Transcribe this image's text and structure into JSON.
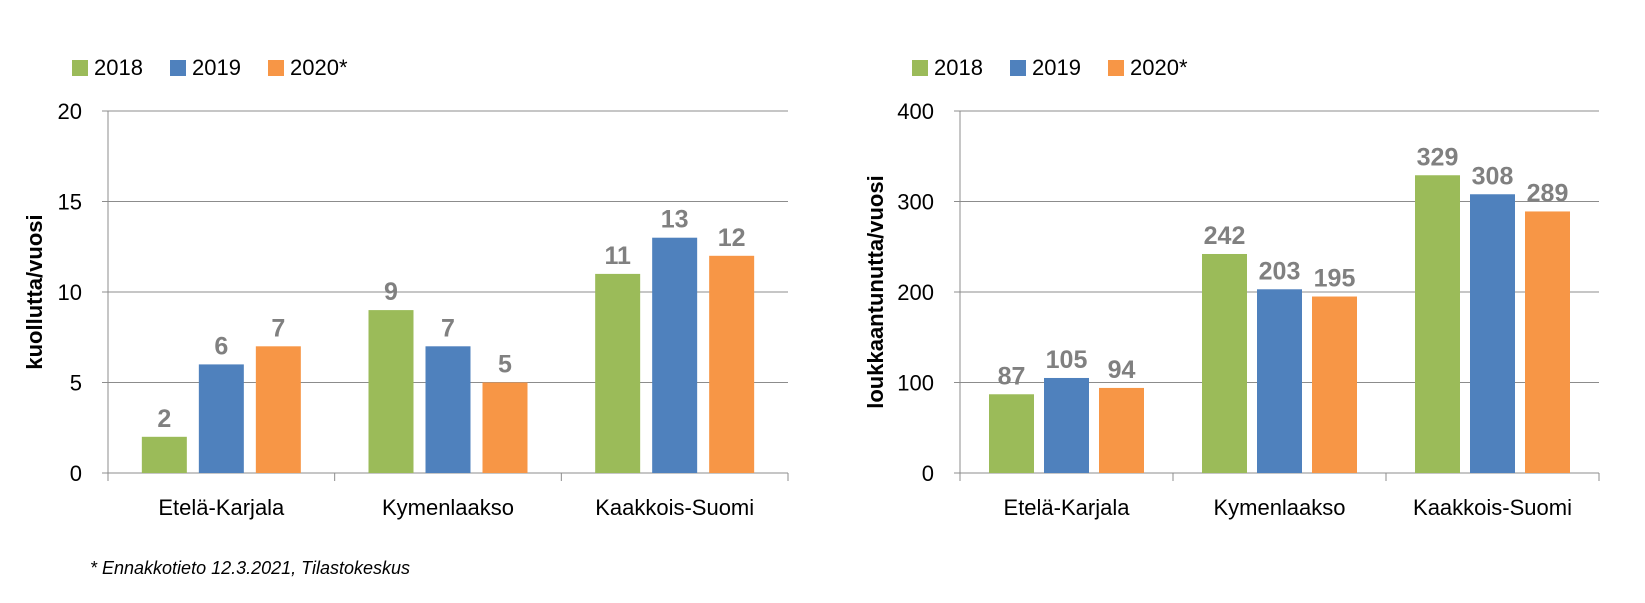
{
  "footnote": "* Ennakkotieto 12.3.2021, Tilastokeskus",
  "chart_data": [
    {
      "type": "bar",
      "categories": [
        "Etelä-Karjala",
        "Kymenlaakso",
        "Kaakkois-Suomi"
      ],
      "series": [
        {
          "name": "2018",
          "color": "#9bbb59",
          "values": [
            2,
            9,
            11
          ]
        },
        {
          "name": "2019",
          "color": "#4f81bd",
          "values": [
            6,
            7,
            13
          ]
        },
        {
          "name": "2020*",
          "color": "#f79646",
          "values": [
            7,
            5,
            12
          ]
        }
      ],
      "ylabel": "kuollutta/vuosi",
      "ylim": [
        0,
        20
      ],
      "yticks": [
        0,
        5,
        10,
        15,
        20
      ],
      "grid": true,
      "legend": "top-left",
      "data_labels": true
    },
    {
      "type": "bar",
      "categories": [
        "Etelä-Karjala",
        "Kymenlaakso",
        "Kaakkois-Suomi"
      ],
      "series": [
        {
          "name": "2018",
          "color": "#9bbb59",
          "values": [
            87,
            242,
            329
          ]
        },
        {
          "name": "2019",
          "color": "#4f81bd",
          "values": [
            105,
            203,
            308
          ]
        },
        {
          "name": "2020*",
          "color": "#f79646",
          "values": [
            94,
            195,
            289
          ]
        }
      ],
      "ylabel": "loukkaantunutta/vuosi",
      "ylim": [
        0,
        400
      ],
      "yticks": [
        0,
        100,
        200,
        300,
        400
      ],
      "grid": true,
      "legend": "top-left",
      "data_labels": true
    }
  ]
}
